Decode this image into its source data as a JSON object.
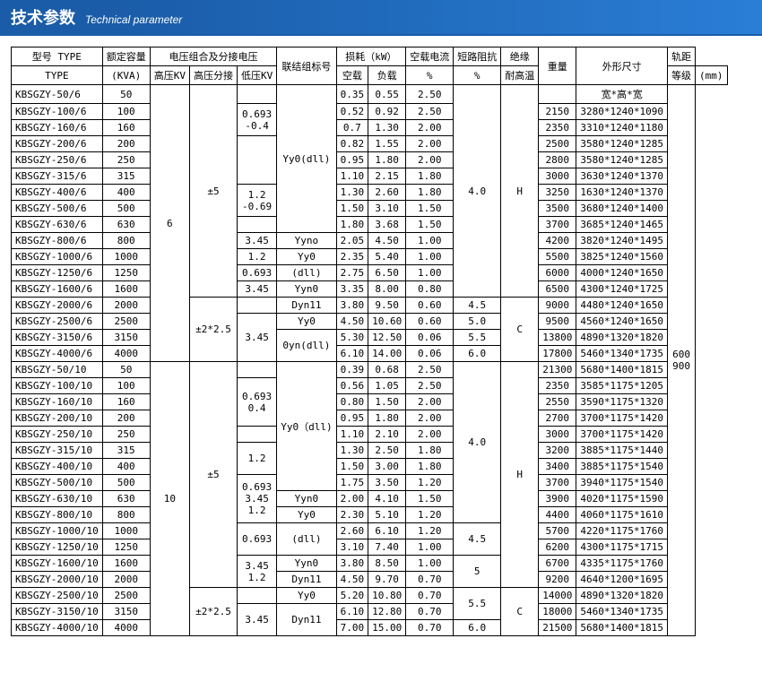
{
  "title_cn": "技术参数",
  "title_en": "Technical parameter",
  "h": {
    "type": "型号 TYPE",
    "type2": "TYPE",
    "cap": "额定容量",
    "cap2": "(KVA)",
    "vcomb": "电压组合及分接电压",
    "hv": "高压KV",
    "tap": "高压分接",
    "lv": "低压KV",
    "conn": "联结组标号",
    "loss": "损耗（kW）",
    "nl": "空载",
    "ll": "负载",
    "nlc": "空载电流",
    "pct": "%",
    "imp": "短路阻抗",
    "ins": "绝缘",
    "temp": "耐高温",
    "cls": "等级",
    "wt": "重量",
    "dim": "外形尺寸",
    "dimh": "宽*高*宽",
    "gauge": "轨距",
    "mm": "(mm)"
  },
  "g1_hv": "6",
  "g1_tap": "±5",
  "g1_tap2": "±2*2.5",
  "g1_imp": "4.0",
  "g1_ins": "H",
  "g1_ins2": "C",
  "g2_hv": "10",
  "g2_tap": "±5",
  "g2_tap2": "±2*2.5",
  "g2_imp1": "4.0",
  "g2_imp2": "4.5",
  "g2_imp3": "5",
  "g2_imp4": "5.5",
  "g2_imp5": "6.0",
  "g2_ins": "H",
  "g2_ins2": "C",
  "gauge1": "600",
  "gauge2": "900",
  "lv1": "0.693\n-0.4",
  "lv2": "1.2\n-0.69",
  "lv3": "3.45",
  "lv4": "1.2",
  "lv5": "0.693",
  "lv6": "3.45",
  "lv7": "3.45",
  "lv8": "0.693\n0.4",
  "lv9": "1.2",
  "lv10": "0.693\n3.45\n1.2",
  "lv11": "0.693",
  "lv12": "3.45\n1.2",
  "lv13": "3.45",
  "cn1": "Yy0(dll)",
  "cn2": "Yyno",
  "cn3": "Yy0",
  "cn4": "(dll)",
  "cn5": "Yyn0",
  "cn6": "Dyn11",
  "cn7": "Yy0",
  "cn8": "0yn(dll)",
  "cn9": "Yy0（dll)",
  "cn10": "Yyn0",
  "cn11": "Yy0",
  "cn12": "(dll)",
  "cn13": "Yyn0",
  "cn14": "Dyn11",
  "cn15": "Yy0",
  "cn16": "Dyn11",
  "r": [
    {
      "t": "KBSGZY-50/6",
      "c": "50",
      "nl": "0.35",
      "ll": "0.55",
      "nc": "2.50",
      "wt": "",
      "d": ""
    },
    {
      "t": "KBSGZY-100/6",
      "c": "100",
      "nl": "0.52",
      "ll": "0.92",
      "nc": "2.50",
      "wt": "2150",
      "d": "3280*1240*1090"
    },
    {
      "t": "KBSGZY-160/6",
      "c": "160",
      "nl": "0.7",
      "ll": "1.30",
      "nc": "2.00",
      "wt": "2350",
      "d": "3310*1240*1180"
    },
    {
      "t": "KBSGZY-200/6",
      "c": "200",
      "nl": "0.82",
      "ll": "1.55",
      "nc": "2.00",
      "wt": "2500",
      "d": "3580*1240*1285"
    },
    {
      "t": "KBSGZY-250/6",
      "c": "250",
      "nl": "0.95",
      "ll": "1.80",
      "nc": "2.00",
      "wt": "2800",
      "d": "3580*1240*1285"
    },
    {
      "t": "KBSGZY-315/6",
      "c": "315",
      "nl": "1.10",
      "ll": "2.15",
      "nc": "1.80",
      "wt": "3000",
      "d": "3630*1240*1370"
    },
    {
      "t": "KBSGZY-400/6",
      "c": "400",
      "nl": "1.30",
      "ll": "2.60",
      "nc": "1.80",
      "wt": "3250",
      "d": "1630*1240*1370"
    },
    {
      "t": "KBSGZY-500/6",
      "c": "500",
      "nl": "1.50",
      "ll": "3.10",
      "nc": "1.50",
      "wt": "3500",
      "d": "3680*1240*1400"
    },
    {
      "t": "KBSGZY-630/6",
      "c": "630",
      "nl": "1.80",
      "ll": "3.68",
      "nc": "1.50",
      "wt": "3700",
      "d": "3685*1240*1465"
    },
    {
      "t": "KBSGZY-800/6",
      "c": "800",
      "nl": "2.05",
      "ll": "4.50",
      "nc": "1.00",
      "wt": "4200",
      "d": "3820*1240*1495"
    },
    {
      "t": "KBSGZY-1000/6",
      "c": "1000",
      "nl": "2.35",
      "ll": "5.40",
      "nc": "1.00",
      "wt": "5500",
      "d": "3825*1240*1560"
    },
    {
      "t": "KBSGZY-1250/6",
      "c": "1250",
      "nl": "2.75",
      "ll": "6.50",
      "nc": "1.00",
      "wt": "6000",
      "d": "4000*1240*1650"
    },
    {
      "t": "KBSGZY-1600/6",
      "c": "1600",
      "nl": "3.35",
      "ll": "8.00",
      "nc": "0.80",
      "wt": "6500",
      "d": "4300*1240*1725"
    },
    {
      "t": "KBSGZY-2000/6",
      "c": "2000",
      "nl": "3.80",
      "ll": "9.50",
      "nc": "0.60",
      "imp": "4.5",
      "wt": "9000",
      "d": "4480*1240*1650"
    },
    {
      "t": "KBSGZY-2500/6",
      "c": "2500",
      "nl": "4.50",
      "ll": "10.60",
      "nc": "0.60",
      "imp": "5.0",
      "wt": "9500",
      "d": "4560*1240*1650"
    },
    {
      "t": "KBSGZY-3150/6",
      "c": "3150",
      "nl": "5.30",
      "ll": "12.50",
      "nc": "0.06",
      "imp": "5.5",
      "wt": "13800",
      "d": "4890*1320*1820"
    },
    {
      "t": "KBSGZY-4000/6",
      "c": "4000",
      "nl": "6.10",
      "ll": "14.00",
      "nc": "0.06",
      "imp": "6.0",
      "wt": "17800",
      "d": "5460*1340*1735"
    },
    {
      "t": "KBSGZY-50/10",
      "c": "50",
      "nl": "0.39",
      "ll": "0.68",
      "nc": "2.50",
      "wt": "21300",
      "d": "5680*1400*1815"
    },
    {
      "t": "KBSGZY-100/10",
      "c": "100",
      "nl": "0.56",
      "ll": "1.05",
      "nc": "2.50",
      "wt": "2350",
      "d": "3585*1175*1205"
    },
    {
      "t": "KBSGZY-160/10",
      "c": "160",
      "nl": "0.80",
      "ll": "1.50",
      "nc": "2.00",
      "wt": "2550",
      "d": "3590*1175*1320"
    },
    {
      "t": "KBSGZY-200/10",
      "c": "200",
      "nl": "0.95",
      "ll": "1.80",
      "nc": "2.00",
      "wt": "2700",
      "d": "3700*1175*1420"
    },
    {
      "t": "KBSGZY-250/10",
      "c": "250",
      "nl": "1.10",
      "ll": "2.10",
      "nc": "2.00",
      "wt": "3000",
      "d": "3700*1175*1420"
    },
    {
      "t": "KBSGZY-315/10",
      "c": "315",
      "nl": "1.30",
      "ll": "2.50",
      "nc": "1.80",
      "wt": "3200",
      "d": "3885*1175*1440"
    },
    {
      "t": "KBSGZY-400/10",
      "c": "400",
      "nl": "1.50",
      "ll": "3.00",
      "nc": "1.80",
      "wt": "3400",
      "d": "3885*1175*1540"
    },
    {
      "t": "KBSGZY-500/10",
      "c": "500",
      "nl": "1.75",
      "ll": "3.50",
      "nc": "1.20",
      "wt": "3700",
      "d": "3940*1175*1540"
    },
    {
      "t": "KBSGZY-630/10",
      "c": "630",
      "nl": "2.00",
      "ll": "4.10",
      "nc": "1.50",
      "wt": "3900",
      "d": "4020*1175*1590"
    },
    {
      "t": "KBSGZY-800/10",
      "c": "800",
      "nl": "2.30",
      "ll": "5.10",
      "nc": "1.20",
      "wt": "4400",
      "d": "4060*1175*1610"
    },
    {
      "t": "KBSGZY-1000/10",
      "c": "1000",
      "nl": "2.60",
      "ll": "6.10",
      "nc": "1.20",
      "wt": "5700",
      "d": "4220*1175*1760"
    },
    {
      "t": "KBSGZY-1250/10",
      "c": "1250",
      "nl": "3.10",
      "ll": "7.40",
      "nc": "1.00",
      "wt": "6200",
      "d": "4300*1175*1715"
    },
    {
      "t": "KBSGZY-1600/10",
      "c": "1600",
      "nl": "3.80",
      "ll": "8.50",
      "nc": "1.00",
      "wt": "6700",
      "d": "4335*1175*1760"
    },
    {
      "t": "KBSGZY-2000/10",
      "c": "2000",
      "nl": "4.50",
      "ll": "9.70",
      "nc": "0.70",
      "wt": "9200",
      "d": "4640*1200*1695"
    },
    {
      "t": "KBSGZY-2500/10",
      "c": "2500",
      "nl": "5.20",
      "ll": "10.80",
      "nc": "0.70",
      "wt": "14000",
      "d": "4890*1320*1820"
    },
    {
      "t": "KBSGZY-3150/10",
      "c": "3150",
      "nl": "6.10",
      "ll": "12.80",
      "nc": "0.70",
      "wt": "18000",
      "d": "5460*1340*1735"
    },
    {
      "t": "KBSGZY-4000/10",
      "c": "4000",
      "nl": "7.00",
      "ll": "15.00",
      "nc": "0.70",
      "wt": "21500",
      "d": "5680*1400*1815"
    }
  ]
}
